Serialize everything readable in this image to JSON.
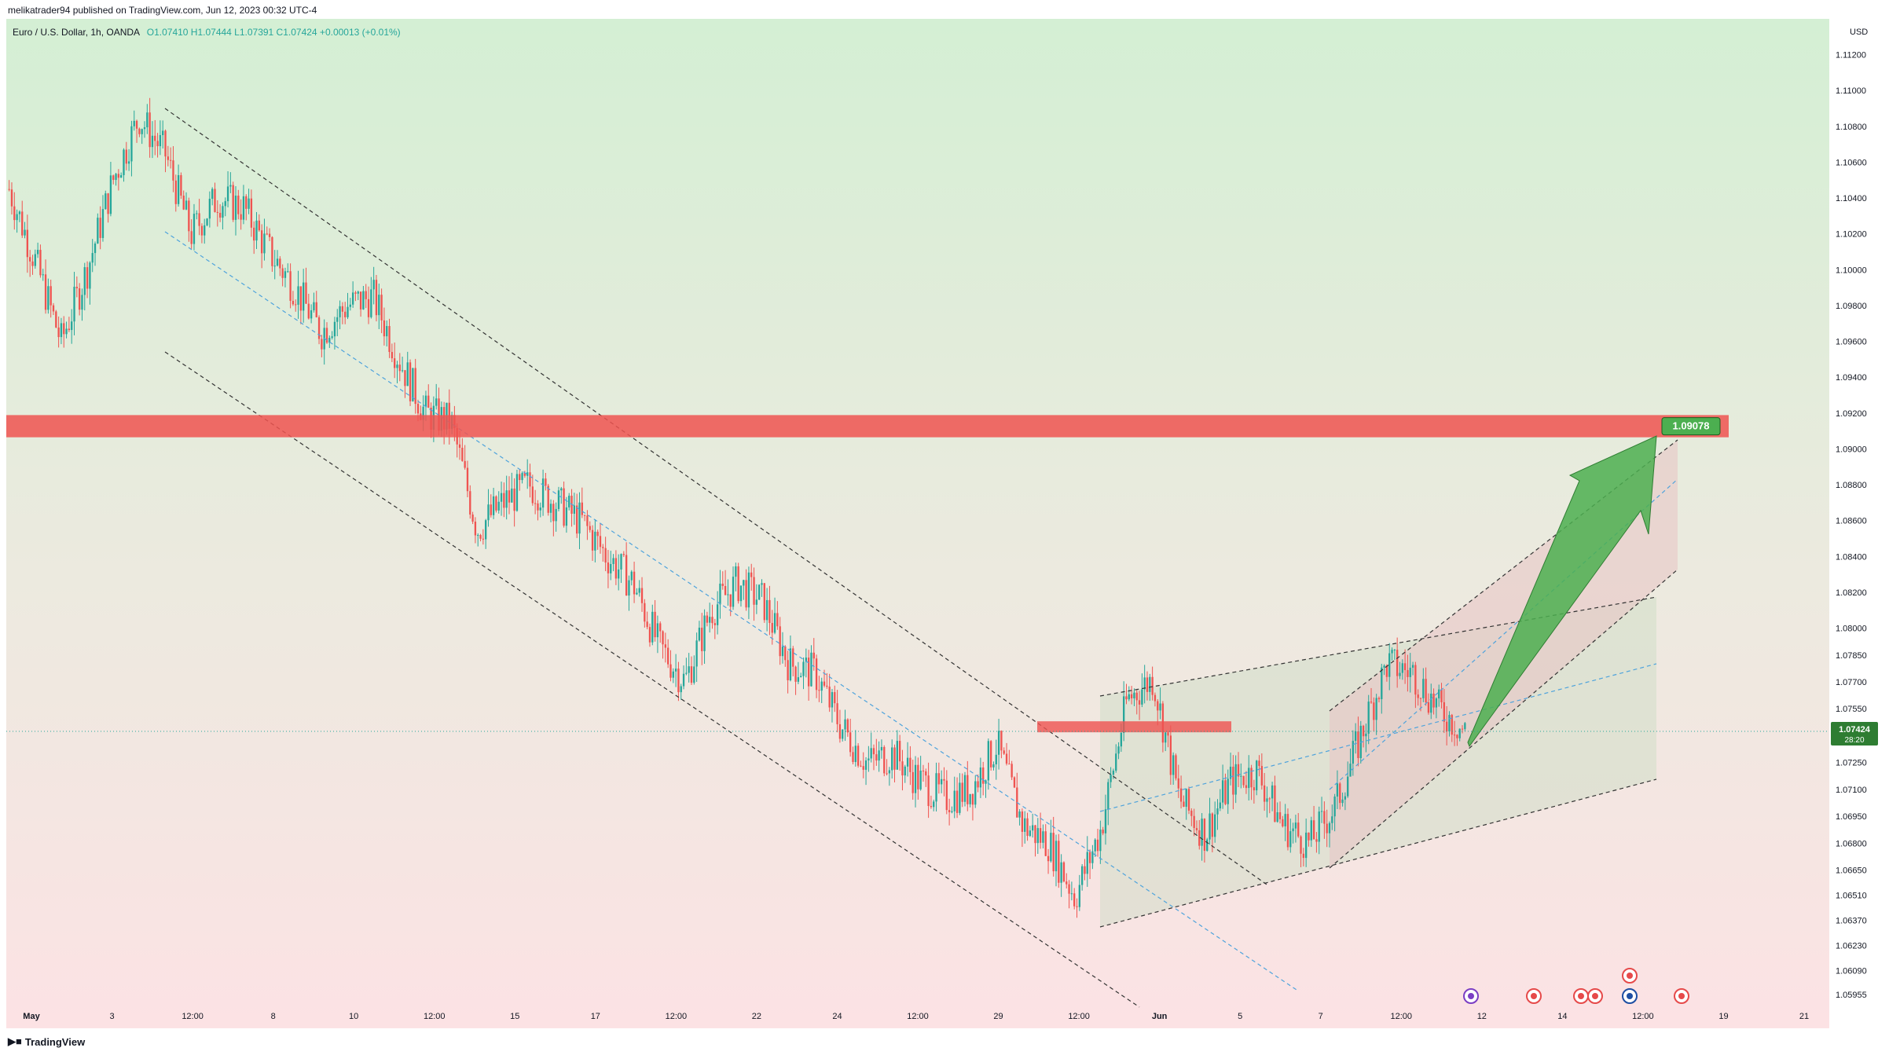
{
  "header": {
    "published": "melikatrader94 published on TradingView.com, Jun 12, 2023 00:32 UTC-4"
  },
  "legend": {
    "symbol": "Euro / U.S. Dollar, 1h, OANDA",
    "ohlc": "O1.07410  H1.07444  L1.07391  C1.07424  +0.00013 (+0.01%)"
  },
  "footer": {
    "brand": "TradingView"
  },
  "colors": {
    "up": "#26a69a",
    "down": "#ef5350",
    "resistance": "#ef5350",
    "target_label": "#4caf50",
    "price_label": "#2e7d32",
    "bg_top": "#d6efd6",
    "bg_bottom": "#fbe3e4"
  },
  "chart_data": {
    "type": "candlestick",
    "symbol": "EURUSD",
    "timeframe": "1h",
    "currency": "USD",
    "ylim": [
      1.0585,
      1.114
    ],
    "y_ticks": [
      "1.11200",
      "1.11000",
      "1.10800",
      "1.10600",
      "1.10400",
      "1.10200",
      "1.10000",
      "1.09800",
      "1.09600",
      "1.09400",
      "1.09200",
      "1.09000",
      "1.08800",
      "1.08600",
      "1.08400",
      "1.08200",
      "1.08000",
      "1.07850",
      "1.07700",
      "1.07550",
      "1.07250",
      "1.07100",
      "1.06950",
      "1.06800",
      "1.06650",
      "1.06510",
      "1.06370",
      "1.06230",
      "1.06090",
      "1.05955"
    ],
    "x_ticks": [
      "May",
      "3",
      "12:00",
      "8",
      "10",
      "12:00",
      "15",
      "17",
      "12:00",
      "22",
      "24",
      "12:00",
      "29",
      "12:00",
      "Jun",
      "5",
      "7",
      "12:00",
      "12",
      "14",
      "12:00",
      "19",
      "21"
    ],
    "series_path": [
      [
        "May 1",
        1.1045
      ],
      [
        "May 2",
        1.1005
      ],
      [
        "May 2 12:00",
        1.096
      ],
      [
        "May 3",
        1.1
      ],
      [
        "May 3 12:00",
        1.105
      ],
      [
        "May 4",
        1.1085
      ],
      [
        "May 4 12:00",
        1.1065
      ],
      [
        "May 5",
        1.102
      ],
      [
        "May 5 12:00",
        1.104
      ],
      [
        "May 8",
        1.1035
      ],
      [
        "May 8 12:00",
        1.101
      ],
      [
        "May 9",
        1.099
      ],
      [
        "May 9 12:00",
        1.0965
      ],
      [
        "May 10",
        1.098
      ],
      [
        "May 10 12:00",
        1.0985
      ],
      [
        "May 11",
        1.095
      ],
      [
        "May 11 12:00",
        1.092
      ],
      [
        "May 12",
        1.0915
      ],
      [
        "May 12 12:00",
        1.0855
      ],
      [
        "May 15",
        1.087
      ],
      [
        "May 15 12:00",
        1.088
      ],
      [
        "May 16",
        1.087
      ],
      [
        "May 16 12:00",
        1.086
      ],
      [
        "May 17",
        1.084
      ],
      [
        "May 17 12:00",
        1.0825
      ],
      [
        "May 18",
        1.079
      ],
      [
        "May 19",
        1.077
      ],
      [
        "May 19 12:00",
        1.081
      ],
      [
        "May 22",
        1.0825
      ],
      [
        "May 22 12:00",
        1.0815
      ],
      [
        "May 23",
        1.078
      ],
      [
        "May 24",
        1.0775
      ],
      [
        "May 24 12:00",
        1.0745
      ],
      [
        "May 25",
        1.0725
      ],
      [
        "May 26",
        1.073
      ],
      [
        "May 26 12:00",
        1.0715
      ],
      [
        "May 29",
        1.0705
      ],
      [
        "May 29 12:00",
        1.071
      ],
      [
        "May 30",
        1.0735
      ],
      [
        "May 30 12:00",
        1.069
      ],
      [
        "May 31",
        1.068
      ],
      [
        "May 31 12:00",
        1.065
      ],
      [
        "Jun 1",
        1.0688
      ],
      [
        "Jun 1 12:00",
        1.076
      ],
      [
        "Jun 2",
        1.0772
      ],
      [
        "Jun 2 12:00",
        1.0705
      ],
      [
        "Jun 5",
        1.0685
      ],
      [
        "Jun 5 12:00",
        1.0715
      ],
      [
        "Jun 6",
        1.072
      ],
      [
        "Jun 6 12:00",
        1.069
      ],
      [
        "Jun 7",
        1.068
      ],
      [
        "Jun 7 12:00",
        1.07
      ],
      [
        "Jun 8",
        1.074
      ],
      [
        "Jun 8 12:00",
        1.078
      ],
      [
        "Jun 9",
        1.0775
      ],
      [
        "Jun 9 12:00",
        1.0755
      ],
      [
        "Jun 12",
        1.07424
      ]
    ],
    "last_price": {
      "value": "1.07424",
      "countdown": "28:20"
    },
    "resistance_zone": {
      "from": 1.091,
      "to": 1.0918
    },
    "support_zone": {
      "from": 1.0742,
      "to": 1.0748
    },
    "target": {
      "value": "1.09078"
    },
    "annotations": [
      "descending channel",
      "rising channel",
      "upward projection arrow to 1.09078"
    ]
  }
}
